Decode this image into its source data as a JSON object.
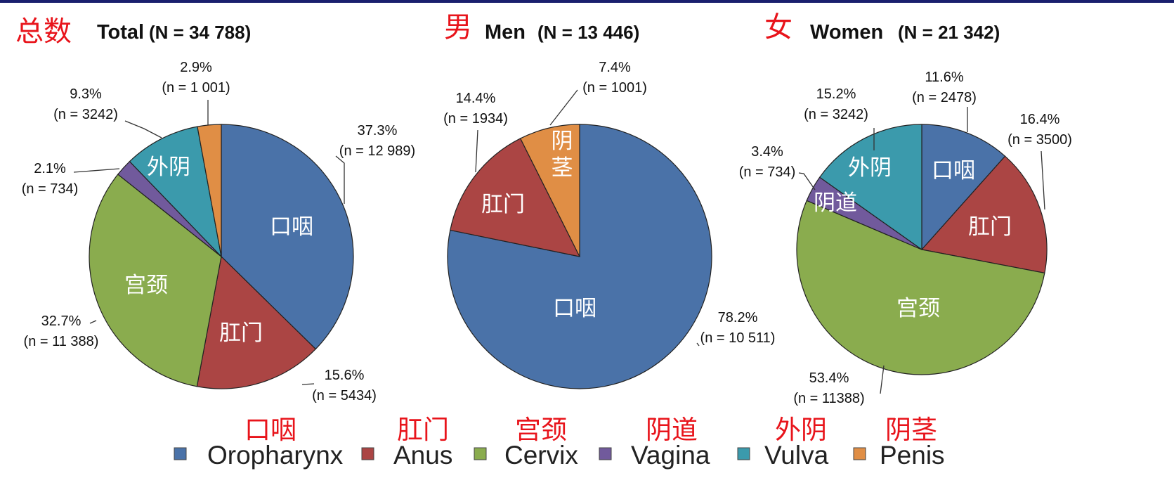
{
  "colors": {
    "Oropharynx": "#4a72a8",
    "Anus": "#ab4544",
    "Cervix": "#8aac4e",
    "Vagina": "#715a9c",
    "Vulva": "#3b9aac",
    "Penis": "#e08e45",
    "title_red": "#e8141b"
  },
  "legend": {
    "items": [
      {
        "key": "Oropharynx",
        "label": "Oropharynx",
        "cn": "口咽"
      },
      {
        "key": "Anus",
        "label": "Anus",
        "cn": "肛门"
      },
      {
        "key": "Cervix",
        "label": "Cervix",
        "cn": "宫颈"
      },
      {
        "key": "Vagina",
        "label": "Vagina",
        "cn": "阴道"
      },
      {
        "key": "Vulva",
        "label": "Vulva",
        "cn": "外阴"
      },
      {
        "key": "Penis",
        "label": "Penis",
        "cn": "阴茎"
      }
    ]
  },
  "chart_data": [
    {
      "type": "pie",
      "title_cn": "总数",
      "title": "Total",
      "title_n": "(N = 34 788)",
      "start_angle_deg": 0,
      "direction": "clockwise",
      "slices": [
        {
          "key": "Oropharynx",
          "cn": "口咽",
          "pct": 37.3,
          "pct_label": "37.3%",
          "n_label": "(n = 12 989)"
        },
        {
          "key": "Anus",
          "cn": "肛门",
          "pct": 15.6,
          "pct_label": "15.6%",
          "n_label": "(n = 5434)"
        },
        {
          "key": "Cervix",
          "cn": "宫颈",
          "pct": 32.7,
          "pct_label": "32.7%",
          "n_label": "(n = 11 388)"
        },
        {
          "key": "Vagina",
          "cn": "",
          "pct": 2.1,
          "pct_label": "2.1%",
          "n_label": "(n = 734)"
        },
        {
          "key": "Vulva",
          "cn": "外阴",
          "pct": 9.3,
          "pct_label": "9.3%",
          "n_label": "(n = 3242)"
        },
        {
          "key": "Penis",
          "cn": "",
          "pct": 2.9,
          "pct_label": "2.9%",
          "n_label": "(n = 1 001)"
        }
      ]
    },
    {
      "type": "pie",
      "title_cn": "男",
      "title": "Men",
      "title_n": "(N = 13 446)",
      "start_angle_deg": 0,
      "direction": "clockwise",
      "slices": [
        {
          "key": "Oropharynx",
          "cn": "口咽",
          "pct": 78.2,
          "pct_label": "78.2%",
          "n_label": "(n = 10 511)"
        },
        {
          "key": "Anus",
          "cn": "肛门",
          "pct": 14.4,
          "pct_label": "14.4%",
          "n_label": "(n = 1934)"
        },
        {
          "key": "Penis",
          "cn": "阴茎",
          "pct": 7.4,
          "pct_label": "7.4%",
          "n_label": "(n = 1001)"
        }
      ]
    },
    {
      "type": "pie",
      "title_cn": "女",
      "title": "Women",
      "title_n": "(N = 21 342)",
      "start_angle_deg": 0,
      "direction": "clockwise",
      "slices": [
        {
          "key": "Oropharynx",
          "cn": "口咽",
          "pct": 11.6,
          "pct_label": "11.6%",
          "n_label": "(n = 2478)"
        },
        {
          "key": "Anus",
          "cn": "肛门",
          "pct": 16.4,
          "pct_label": "16.4%",
          "n_label": "(n = 3500)"
        },
        {
          "key": "Cervix",
          "cn": "宫颈",
          "pct": 53.4,
          "pct_label": "53.4%",
          "n_label": "(n = 11388)"
        },
        {
          "key": "Vagina",
          "cn": "阴道",
          "pct": 3.4,
          "pct_label": "3.4%",
          "n_label": "(n = 734)"
        },
        {
          "key": "Vulva",
          "cn": "外阴",
          "pct": 15.2,
          "pct_label": "15.2%",
          "n_label": "(n = 3242)"
        }
      ]
    }
  ]
}
